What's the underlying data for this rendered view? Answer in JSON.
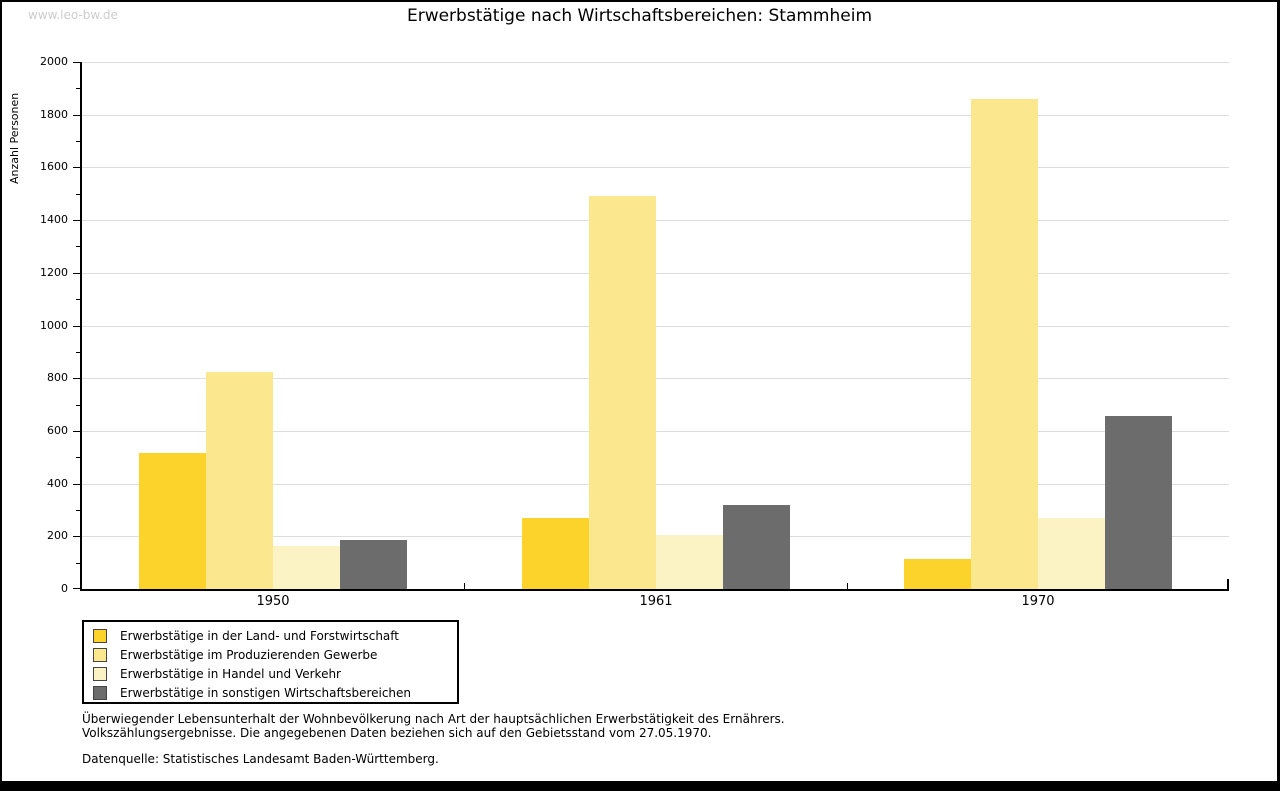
{
  "watermark": "www.leo-bw.de",
  "title": "Erwerbstätige nach Wirtschaftsbereichen: Stammheim",
  "chart_data": {
    "type": "bar",
    "title": "Erwerbstätige nach Wirtschaftsbereichen: Stammheim",
    "xlabel": "",
    "ylabel": "Anzahl Personen",
    "ylim": [
      0,
      2000
    ],
    "ytick_major_step": 200,
    "ytick_minor_step": 100,
    "grid": true,
    "legend_position": "bottom-left",
    "categories": [
      "1950",
      "1961",
      "1970"
    ],
    "series": [
      {
        "name": "Erwerbstätige in der Land- und Forstwirtschaft",
        "color": "#FCD32B",
        "values": [
          515,
          270,
          115
        ]
      },
      {
        "name": "Erwerbstätige im Produzierenden Gewerbe",
        "color": "#FBE88E",
        "values": [
          825,
          1490,
          1860
        ]
      },
      {
        "name": "Erwerbstätige in Handel und Verkehr",
        "color": "#FBF3C3",
        "values": [
          165,
          205,
          270
        ]
      },
      {
        "name": "Erwerbstätige in sonstigen Wirtschaftsbereichen",
        "color": "#6C6C6C",
        "values": [
          185,
          320,
          655
        ]
      }
    ]
  },
  "notes": {
    "line1": "Überwiegender Lebensunterhalt der Wohnbevölkerung nach Art der hauptsächlichen Erwerbstätigkeit des Ernährers.",
    "line2": "Volkszählungsergebnisse. Die angegebenen Daten beziehen sich auf den Gebietsstand vom 27.05.1970.",
    "source": "Datenquelle: Statistisches Landesamt Baden-Württemberg."
  },
  "colors": {
    "gridline": "#DDDDDD",
    "axis": "#000000",
    "watermark": "#CCCCCC",
    "background": "#FFFFFF"
  }
}
